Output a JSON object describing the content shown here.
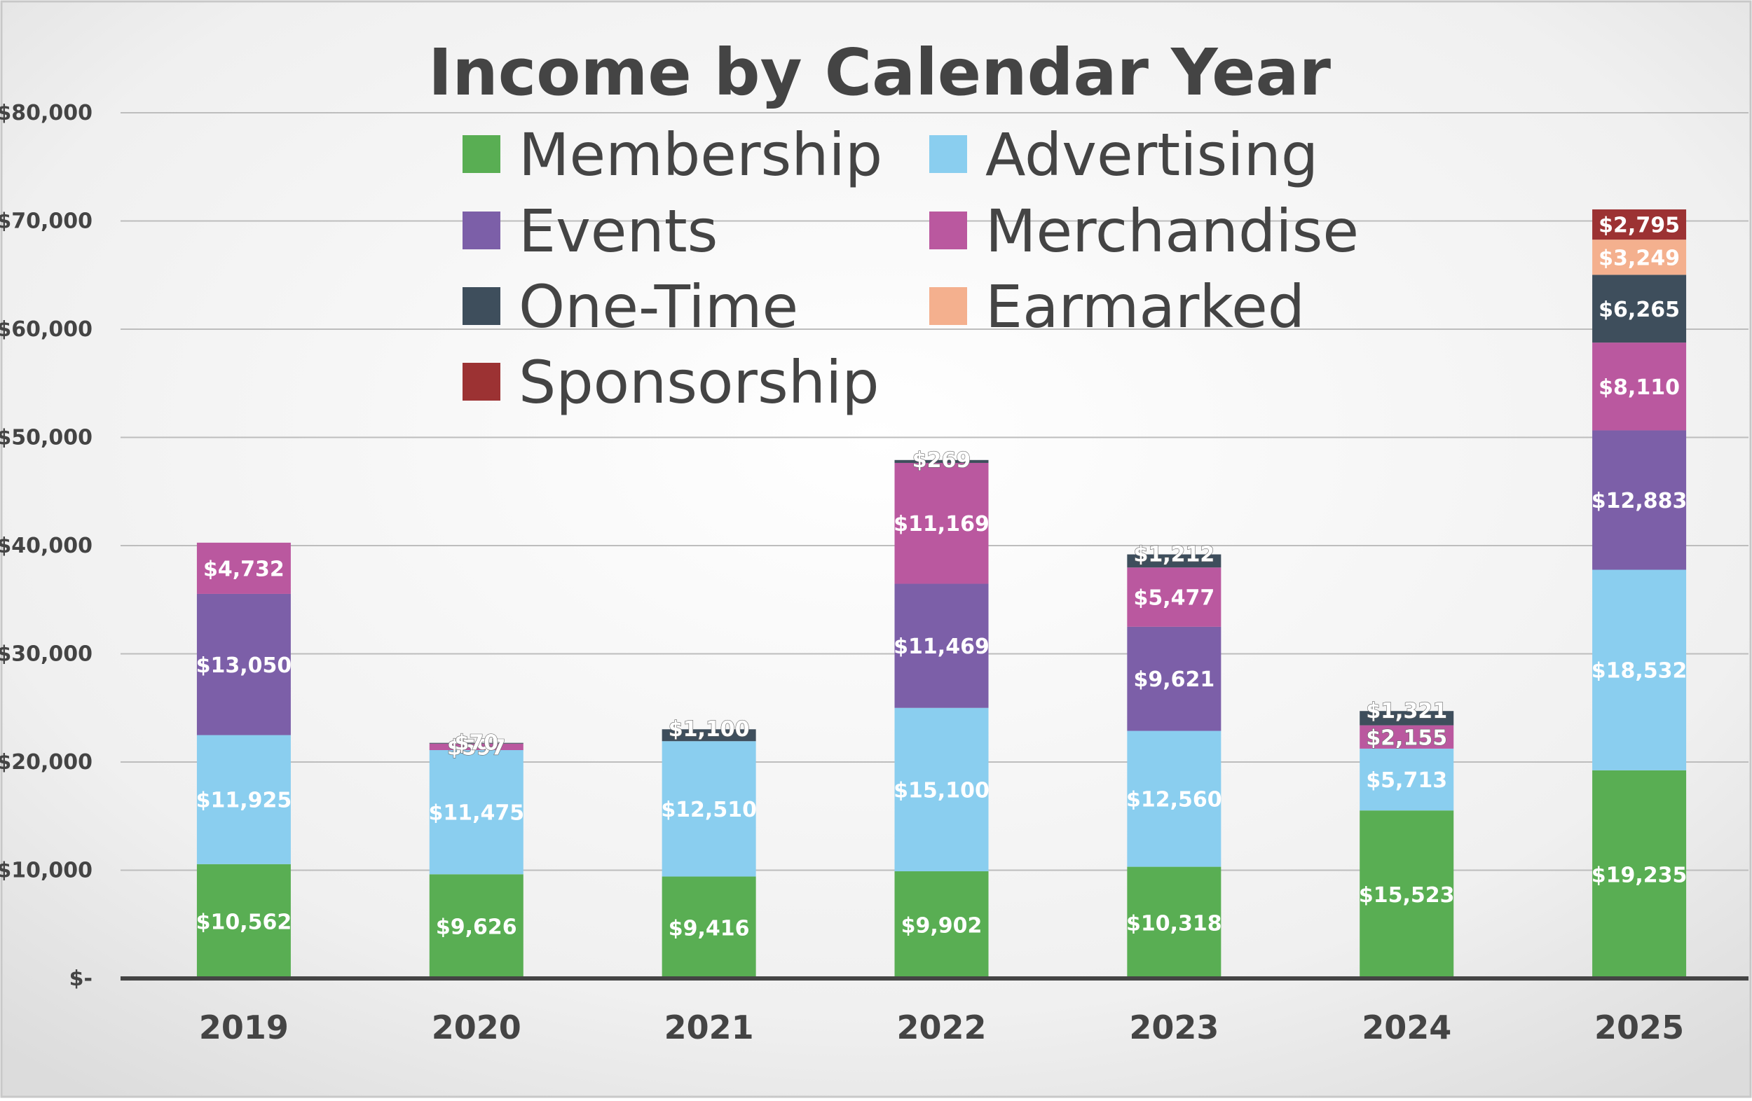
{
  "chart_data": {
    "type": "bar",
    "stacked": true,
    "title": "Income by Calendar Year",
    "xlabel": "",
    "ylabel": "",
    "ylim": [
      0,
      80000
    ],
    "yticks": [
      0,
      10000,
      20000,
      30000,
      40000,
      50000,
      60000,
      70000,
      80000
    ],
    "ytick_labels": [
      "$-",
      "$10,000",
      "$20,000",
      "$30,000",
      "$40,000",
      "$50,000",
      "$60,000",
      "$70,000",
      "$80,000"
    ],
    "grid": true,
    "legend_position": "top-center",
    "categories": [
      "2019",
      "2020",
      "2021",
      "2022",
      "2023",
      "2024",
      "2025"
    ],
    "series": [
      {
        "name": "Membership",
        "color": "#59AE53",
        "values": [
          10562,
          9626,
          9416,
          9902,
          10318,
          15523,
          19235
        ],
        "labels": [
          "$10,562",
          "$9,626",
          "$9,416",
          "$9,902",
          "$10,318",
          "$15,523",
          "$19,235"
        ]
      },
      {
        "name": "Advertising",
        "color": "#8ACEEF",
        "values": [
          11925,
          11475,
          12510,
          15100,
          12560,
          5713,
          18532
        ],
        "labels": [
          "$11,925",
          "$11,475",
          "$12,510",
          "$15,100",
          "$12,560",
          "$5,713",
          "$18,532"
        ]
      },
      {
        "name": "Events",
        "color": "#7C5FA8",
        "values": [
          13050,
          0,
          0,
          11469,
          9621,
          0,
          12883
        ],
        "labels": [
          "$13,050",
          "",
          "",
          "$11,469",
          "$9,621",
          "",
          "$12,883"
        ]
      },
      {
        "name": "Merchandise",
        "color": "#BA589F",
        "values": [
          4732,
          597,
          0,
          11169,
          5477,
          2155,
          8110
        ],
        "labels": [
          "$4,732",
          "$597",
          "",
          "$11,169",
          "$5,477",
          "$2,155",
          "$8,110"
        ]
      },
      {
        "name": "One-Time",
        "color": "#3E4E5C",
        "values": [
          0,
          70,
          1100,
          269,
          1212,
          1321,
          6265
        ],
        "labels": [
          "",
          "$70",
          "$1,100",
          "$269",
          "$1,212",
          "$1,321",
          "$6,265"
        ]
      },
      {
        "name": "Earmarked",
        "color": "#F4B08E",
        "values": [
          0,
          0,
          0,
          0,
          0,
          0,
          3249
        ],
        "labels": [
          "",
          "",
          "",
          "",
          "",
          "",
          "$3,249"
        ]
      },
      {
        "name": "Sponsorship",
        "color": "#9C3233",
        "values": [
          0,
          0,
          0,
          0,
          0,
          0,
          2795
        ],
        "labels": [
          "",
          "",
          "",
          "",
          "",
          "",
          "$2,795"
        ]
      }
    ]
  }
}
